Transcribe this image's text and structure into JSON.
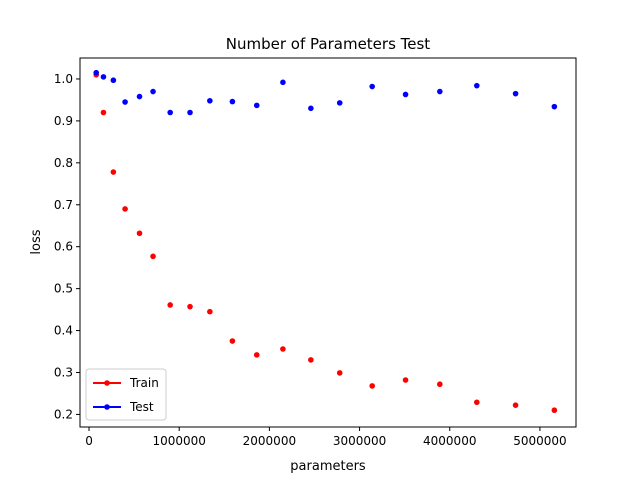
{
  "chart_data": {
    "type": "scatter",
    "title": "Number of Parameters Test",
    "xlabel": "parameters",
    "ylabel": "loss",
    "xlim": [
      -100000,
      5400000
    ],
    "ylim": [
      0.17,
      1.05
    ],
    "xticks": [
      0,
      1000000,
      2000000,
      3000000,
      4000000,
      5000000
    ],
    "xtick_labels": [
      "0",
      "1000000",
      "2000000",
      "3000000",
      "4000000",
      "5000000"
    ],
    "yticks": [
      0.2,
      0.3,
      0.4,
      0.5,
      0.6,
      0.7,
      0.8,
      0.9,
      1.0
    ],
    "ytick_labels": [
      "0.2",
      "0.3",
      "0.4",
      "0.5",
      "0.6",
      "0.7",
      "0.8",
      "0.9",
      "1.0"
    ],
    "grid": false,
    "legend_position": "lower-left",
    "series": [
      {
        "name": "Train",
        "color": "#ff0000",
        "x": [
          80000,
          160000,
          270000,
          400000,
          560000,
          710000,
          900000,
          1120000,
          1340000,
          1590000,
          1860000,
          2150000,
          2460000,
          2780000,
          3140000,
          3510000,
          3890000,
          4300000,
          4730000,
          5160000
        ],
        "y": [
          1.01,
          0.92,
          0.778,
          0.69,
          0.632,
          0.577,
          0.461,
          0.457,
          0.445,
          0.375,
          0.342,
          0.356,
          0.33,
          0.299,
          0.268,
          0.282,
          0.272,
          0.229,
          0.222,
          0.21
        ]
      },
      {
        "name": "Test",
        "color": "#0000ff",
        "x": [
          80000,
          160000,
          270000,
          400000,
          560000,
          710000,
          900000,
          1120000,
          1340000,
          1590000,
          1860000,
          2150000,
          2460000,
          2780000,
          3140000,
          3510000,
          3890000,
          4300000,
          4730000,
          5160000
        ],
        "y": [
          1.015,
          1.005,
          0.997,
          0.945,
          0.958,
          0.97,
          0.92,
          0.92,
          0.948,
          0.946,
          0.937,
          0.992,
          0.93,
          0.943,
          0.982,
          0.963,
          0.97,
          0.984,
          0.965,
          0.934
        ]
      }
    ]
  }
}
